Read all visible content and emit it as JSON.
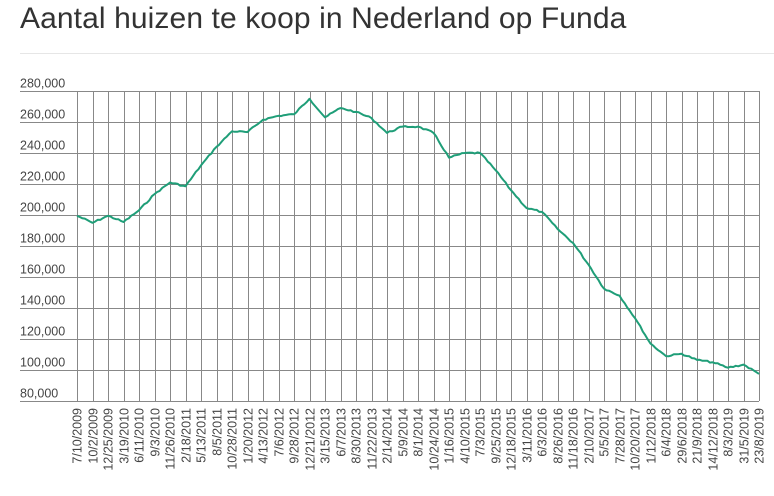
{
  "title": "Aantal huizen te koop in Nederland op Funda",
  "colors": {
    "line": "#1f9e78",
    "grid": "#888888",
    "text": "#444444",
    "title": "#333333"
  },
  "chart_data": {
    "type": "line",
    "title": "Aantal huizen te koop in Nederland op Funda",
    "xlabel": "",
    "ylabel": "",
    "ylim": [
      80000,
      280000
    ],
    "yticks": [
      "280,000",
      "260,000",
      "240,000",
      "220,000",
      "200,000",
      "180,000",
      "160,000",
      "140,000",
      "120,000",
      "100,000",
      "80,000"
    ],
    "grid": true,
    "legend": null,
    "categories": [
      "7/10/2009",
      "10/2/2009",
      "12/25/2009",
      "3/19/2010",
      "6/11/2010",
      "9/3/2010",
      "11/26/2010",
      "2/18/2011",
      "5/13/2011",
      "8/5/2011",
      "10/28/2011",
      "1/20/2012",
      "4/13/2012",
      "7/6/2012",
      "9/28/2012",
      "12/21/2012",
      "3/15/2013",
      "6/7/2013",
      "8/30/2013",
      "11/22/2013",
      "2/14/2014",
      "5/9/2014",
      "8/1/2014",
      "10/24/2014",
      "1/16/2015",
      "4/10/2015",
      "7/3/2015",
      "9/25/2015",
      "12/18/2015",
      "3/11/2016",
      "6/3/2016",
      "8/26/2016",
      "11/18/2016",
      "2/10/2017",
      "5/5/2017",
      "7/28/2017",
      "10/20/2017",
      "1/12/2018",
      "6/4/2018",
      "29/6/2018",
      "21/9/2018",
      "14/12/2018",
      "8/3/2019",
      "31/5/2019",
      "23/8/2019"
    ],
    "series": [
      {
        "name": "Aantal huizen te koop",
        "values": [
          199500,
          195000,
          199500,
          195500,
          203000,
          213500,
          221000,
          218500,
          232000,
          244000,
          254000,
          253500,
          261500,
          264000,
          265000,
          275000,
          263000,
          269000,
          266500,
          262500,
          253000,
          257000,
          257000,
          253000,
          237000,
          240000,
          240000,
          229000,
          216000,
          204500,
          202000,
          191000,
          182000,
          168000,
          152500,
          148000,
          133500,
          117000,
          109000,
          110500,
          106500,
          105000,
          101500,
          103500,
          97500
        ]
      }
    ]
  }
}
